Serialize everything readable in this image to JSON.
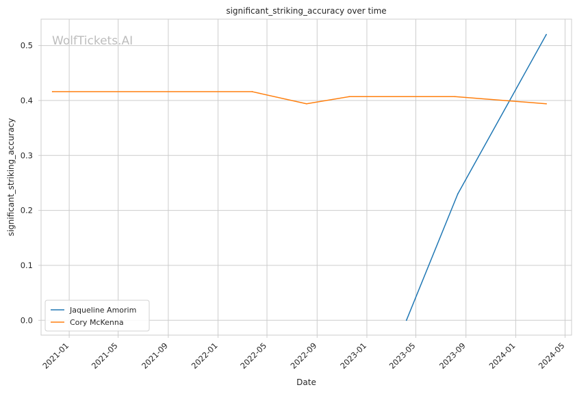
{
  "chart_data": {
    "type": "line",
    "title": "significant_striking_accuracy over time",
    "xlabel": "Date",
    "ylabel": "significant_striking_accuracy",
    "watermark": "WolfTickets.AI",
    "grid": true,
    "legend_position": "lower-left",
    "xlim": [
      "2020-10-24",
      "2024-05-17"
    ],
    "ylim": [
      -0.027,
      0.548
    ],
    "x_ticks": [
      "2021-01",
      "2021-05",
      "2021-09",
      "2022-01",
      "2022-05",
      "2022-09",
      "2023-01",
      "2023-05",
      "2023-09",
      "2024-01",
      "2024-05"
    ],
    "y_ticks": [
      0.0,
      0.1,
      0.2,
      0.3,
      0.4,
      0.5
    ],
    "y_tick_labels": [
      "0.0",
      "0.1",
      "0.2",
      "0.3",
      "0.4",
      "0.5"
    ],
    "series": [
      {
        "name": "Jaqueline Amorim",
        "color": "#1f77b4",
        "points": [
          {
            "x": "2023-04-08",
            "y": 0.0
          },
          {
            "x": "2023-08-12",
            "y": 0.23
          },
          {
            "x": "2024-03-16",
            "y": 0.52
          }
        ]
      },
      {
        "name": "Cory McKenna",
        "color": "#ff7f0e",
        "points": [
          {
            "x": "2020-11-21",
            "y": 0.416
          },
          {
            "x": "2022-03-26",
            "y": 0.416
          },
          {
            "x": "2022-08-06",
            "y": 0.394
          },
          {
            "x": "2022-11-19",
            "y": 0.407
          },
          {
            "x": "2023-08-05",
            "y": 0.407
          },
          {
            "x": "2024-03-16",
            "y": 0.394
          }
        ]
      }
    ]
  }
}
